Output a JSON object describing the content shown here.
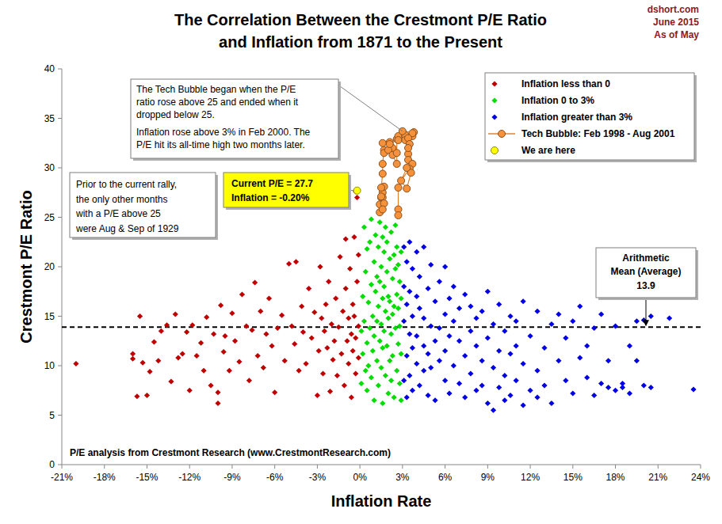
{
  "chart_data": {
    "type": "scatter",
    "title": [
      "The Correlation Between the Crestmont P/E Ratio",
      "and Inflation from 1871 to the Present"
    ],
    "source": [
      "dshort.com",
      "June 2015",
      "As of May"
    ],
    "x_label": "Inflation Rate",
    "y_label": "Crestmont  P/E  Ratio",
    "footnote": "P/E analysis from Crestmont Research (www.CrestmontResearch.com)",
    "xlim": [
      -21,
      24
    ],
    "ylim": [
      0,
      40
    ],
    "xticks": [
      {
        "value": -21,
        "label": "-21%"
      },
      {
        "value": -18,
        "label": "-18%"
      },
      {
        "value": -15,
        "label": "-15%"
      },
      {
        "value": -12,
        "label": "-12%"
      },
      {
        "value": -9,
        "label": "-9%"
      },
      {
        "value": -6,
        "label": "-6%"
      },
      {
        "value": -3,
        "label": "-3%"
      },
      {
        "value": 0,
        "label": "0%"
      },
      {
        "value": 3,
        "label": "3%"
      },
      {
        "value": 6,
        "label": "6%"
      },
      {
        "value": 9,
        "label": "9%"
      },
      {
        "value": 12,
        "label": "12%"
      },
      {
        "value": 15,
        "label": "15%"
      },
      {
        "value": 18,
        "label": "18%"
      },
      {
        "value": 21,
        "label": "21%"
      },
      {
        "value": 24,
        "label": "24%"
      }
    ],
    "yticks": [
      0,
      5,
      10,
      15,
      20,
      25,
      30,
      35,
      40
    ],
    "grid": false,
    "legend": "upper right",
    "series": [
      {
        "name": "Inflation less than 0",
        "color": "#c00000",
        "marker": "diamond",
        "x": [
          -20,
          -16,
          -16,
          -15.7,
          -15.5,
          -15.3,
          -15,
          -14.8,
          -14.5,
          -14.2,
          -14,
          -13.6,
          -13.3,
          -13,
          -12.8,
          -12.5,
          -12.2,
          -12,
          -11.8,
          -11.5,
          -11.2,
          -11,
          -10.8,
          -10.5,
          -10.3,
          -10,
          -10,
          -9.8,
          -9.6,
          -9.5,
          -9.2,
          -9,
          -8.8,
          -8.5,
          -8.3,
          -8,
          -7.8,
          -7.6,
          -7.4,
          -7.2,
          -7,
          -6.8,
          -6.6,
          -6.4,
          -6.2,
          -6,
          -5.8,
          -5.5,
          -5.3,
          -5,
          -4.8,
          -4.6,
          -4.5,
          -4.3,
          -4.1,
          -4,
          -3.8,
          -3.6,
          -3.4,
          -3.2,
          -3,
          -2.9,
          -2.8,
          -2.7,
          -2.6,
          -2.5,
          -2.4,
          -2.3,
          -2.2,
          -2.1,
          -2,
          -1.9,
          -1.8,
          -1.7,
          -1.6,
          -1.5,
          -1.4,
          -1.3,
          -1.2,
          -1.1,
          -1,
          -1,
          -0.9,
          -0.8,
          -0.8,
          -0.7,
          -0.6,
          -0.6,
          -0.5,
          -0.5,
          -0.4,
          -0.4,
          -0.3,
          -0.3,
          -0.2,
          -0.2,
          -0.1,
          -0.1,
          -0.1,
          -0.3
        ],
        "values": [
          10.2,
          11.2,
          10.7,
          6.9,
          15,
          10.3,
          7,
          9.4,
          12.4,
          10.5,
          13.5,
          14.1,
          8.4,
          15.2,
          10.8,
          11.2,
          13.4,
          7.5,
          14.1,
          11,
          12.3,
          9.5,
          14.9,
          8,
          13.2,
          7.3,
          6.2,
          16.1,
          11.4,
          13,
          9.5,
          15.3,
          12.5,
          10.4,
          17.2,
          14,
          8.5,
          13.6,
          18.4,
          11,
          15.5,
          9.8,
          13.2,
          16.8,
          12,
          7.3,
          13.8,
          15.1,
          10.5,
          20.3,
          14,
          12.2,
          20.5,
          9.5,
          16,
          13.4,
          10.2,
          17.8,
          12.8,
          15.4,
          7,
          11.5,
          20,
          14.8,
          9.2,
          13.5,
          16.2,
          11.8,
          18.5,
          7.4,
          14.2,
          10.6,
          12.5,
          16.8,
          9,
          13.9,
          21,
          11.2,
          15.5,
          8,
          17.8,
          22.8,
          12.5,
          14.8,
          10.2,
          19.8,
          6.8,
          13.2,
          16.2,
          11.5,
          23,
          15,
          9.2,
          12.8,
          18.5,
          27,
          14,
          21.2,
          10.8,
          27.6
        ]
      },
      {
        "name": "Inflation  0 to 3%",
        "color": "#00dd00",
        "marker": "diamond",
        "x": [
          0.1,
          0.1,
          0.2,
          0.2,
          0.3,
          0.3,
          0.4,
          0.4,
          0.5,
          0.5,
          0.5,
          0.6,
          0.6,
          0.7,
          0.7,
          0.8,
          0.8,
          0.8,
          0.9,
          0.9,
          1,
          1,
          1,
          1.1,
          1.1,
          1.2,
          1.2,
          1.2,
          1.3,
          1.3,
          1.3,
          1.4,
          1.4,
          1.4,
          1.5,
          1.5,
          1.5,
          1.6,
          1.6,
          1.6,
          1.6,
          1.7,
          1.7,
          1.7,
          1.8,
          1.8,
          1.8,
          1.9,
          1.9,
          1.9,
          2,
          2,
          2,
          2.1,
          2.1,
          2.1,
          2.2,
          2.2,
          2.2,
          2.3,
          2.3,
          2.3,
          2.4,
          2.4,
          2.4,
          2.5,
          2.5,
          2.5,
          2.6,
          2.6,
          2.6,
          2.7,
          2.7,
          2.7,
          2.8,
          2.8,
          2.8,
          2.9,
          2.9,
          2.9,
          2.9
        ],
        "values": [
          13.5,
          8.2,
          17,
          11.2,
          14.5,
          24,
          9.5,
          19.5,
          12.3,
          21.8,
          7.5,
          16.4,
          10,
          22.5,
          13.8,
          18.2,
          8.8,
          24.8,
          15,
          11.5,
          20.5,
          6.5,
          13,
          17.5,
          23.2,
          10.5,
          19,
          14.5,
          22,
          8,
          16,
          12.5,
          24.5,
          18.5,
          20,
          9.8,
          14.2,
          16.8,
          23,
          11.8,
          6.2,
          21.5,
          13.5,
          18,
          9,
          15.5,
          24,
          19.5,
          12,
          22.5,
          17,
          7.2,
          14.8,
          20.8,
          10.5,
          16.5,
          23.5,
          13.2,
          8.5,
          18.8,
          15.2,
          11,
          21.2,
          6.8,
          16,
          13.8,
          19.8,
          24.2,
          9.5,
          17.2,
          22,
          12.2,
          15.8,
          20.2,
          8.2,
          18.5,
          14,
          11.2,
          21.5,
          6.5,
          16.8
        ]
      },
      {
        "name": "Inflation greater than 3%",
        "color": "#0000e6",
        "marker": "diamond",
        "x": [
          3.1,
          3.1,
          3.1,
          3.1,
          3.3,
          3.3,
          3.3,
          3.3,
          3.5,
          3.5,
          3.5,
          3.5,
          3.7,
          3.7,
          3.7,
          3.7,
          4,
          4,
          4,
          4,
          4.2,
          4.2,
          4.2,
          4.5,
          4.5,
          4.5,
          4.5,
          4.8,
          4.8,
          4.8,
          5,
          5,
          5,
          5.3,
          5.3,
          5.3,
          5.6,
          5.6,
          5.6,
          6,
          6,
          6,
          6,
          6.3,
          6.3,
          6.3,
          6.6,
          6.6,
          6.6,
          7,
          7,
          7,
          7.4,
          7.4,
          7.4,
          7.8,
          7.8,
          7.8,
          8.2,
          8.2,
          8.2,
          8.6,
          8.6,
          8.6,
          9,
          9,
          9,
          9.4,
          9.4,
          9.4,
          9.8,
          9.8,
          9.8,
          10.2,
          10.2,
          10.2,
          10.6,
          10.6,
          10.6,
          11,
          11,
          11,
          11.5,
          11.5,
          11.5,
          12,
          12,
          12.5,
          12.5,
          12.5,
          13,
          13,
          13.5,
          13.5,
          14,
          14,
          14.5,
          14.5,
          15,
          15,
          15.5,
          15.5,
          16,
          16,
          16.5,
          16.5,
          17,
          17,
          17.5,
          17.5,
          18,
          18,
          18.5,
          18.5,
          19,
          19,
          19.5,
          19.5,
          20,
          20,
          20.5,
          20.5,
          21.8,
          23.5
        ],
        "values": [
          22,
          14.5,
          8.5,
          18,
          11,
          20.5,
          6.8,
          16.2,
          13.2,
          22.5,
          9,
          17.5,
          15,
          7.5,
          19.8,
          11.8,
          21.5,
          13,
          10.2,
          17,
          8,
          15.8,
          19,
          12,
          22,
          9.5,
          14.8,
          17.8,
          11.2,
          7,
          14,
          20.2,
          9.8,
          12.5,
          16.5,
          6.5,
          18.5,
          10.5,
          13.8,
          8.5,
          15.2,
          11.5,
          20,
          13,
          7.2,
          16.8,
          10,
          14.5,
          18,
          8.2,
          12.5,
          15.8,
          6.8,
          11,
          17.2,
          9.2,
          13.5,
          16,
          7.5,
          12,
          14.8,
          10.5,
          15.5,
          8,
          6.2,
          12.8,
          17.5,
          5.5,
          9.8,
          14.2,
          7.8,
          11.5,
          16.2,
          6.5,
          13.5,
          9,
          11.2,
          15,
          7,
          8.5,
          14.5,
          12,
          6,
          10.2,
          16.5,
          7.5,
          13,
          9.5,
          15.5,
          6.8,
          11.8,
          8,
          14.2,
          6.2,
          10.5,
          15.2,
          8.5,
          12.8,
          7.2,
          14.5,
          10.8,
          16,
          8.8,
          12,
          13.8,
          7,
          8.2,
          15.2,
          7.8,
          10.5,
          7.5,
          14,
          7.8,
          8.2,
          12,
          7.2,
          10.5,
          14.5,
          8,
          14.6,
          7.8,
          15,
          14.8,
          7.6
        ]
      },
      {
        "name": "Tech Bubble: Feb 1998 - Aug 2001",
        "color": "#f7923a",
        "marker": "circle",
        "type": "line",
        "line_style": "solid",
        "x": [
          1.4,
          1.4,
          1.5,
          1.6,
          1.7,
          1.6,
          1.7,
          1.6,
          1.5,
          1.5,
          1.6,
          1.6,
          1.7,
          1.6,
          1.7,
          2.3,
          2.1,
          2.0,
          2.1,
          2.3,
          2.6,
          2.6,
          2.6,
          2.7,
          2.7,
          3.2,
          3.8,
          3.0,
          3.2,
          3.7,
          3.7,
          3.4,
          3.5,
          3.4,
          3.4,
          3.4,
          3.7,
          3.5,
          2.9,
          3.3,
          3.6,
          3.3,
          2.7,
          2.7,
          2.7
        ],
        "values": [
          25.5,
          26.3,
          27,
          27.5,
          28.1,
          27,
          26.4,
          25.8,
          27.1,
          28,
          29.4,
          30.4,
          31.8,
          32.5,
          31.5,
          32,
          32.6,
          31.8,
          32.4,
          31.3,
          30.4,
          31.5,
          32.9,
          33.2,
          32.8,
          33.3,
          33.6,
          33.7,
          32.8,
          33.2,
          33.5,
          33,
          32.4,
          31.4,
          30.8,
          32,
          30.4,
          29.9,
          28.7,
          27.9,
          29.5,
          30,
          28,
          25.8,
          25.2
        ]
      },
      {
        "name": "We are here",
        "color": "#ffff00",
        "marker": "circle",
        "x": [
          -0.2
        ],
        "values": [
          27.7
        ]
      }
    ],
    "mean_line": {
      "value": 13.9,
      "label": [
        "Arithmetic",
        "Mean (Average)"
      ]
    },
    "annotations": [
      {
        "lines": [
          "The Tech Bubble began when the P/E",
          "ratio rose above 25 and ended when it",
          "dropped below 25.",
          "Inflation rose above 3% in Feb 2000.  The",
          "P/E hit its all-time high two months later."
        ]
      },
      {
        "lines": [
          "Prior to the current rally,",
          "the only other months",
          "with a P/E above 25",
          "were Aug & Sep of 1929"
        ]
      }
    ],
    "current_label": {
      "lines": [
        "Current P/E = 27.7",
        "Inflation = -0.20%"
      ]
    }
  }
}
